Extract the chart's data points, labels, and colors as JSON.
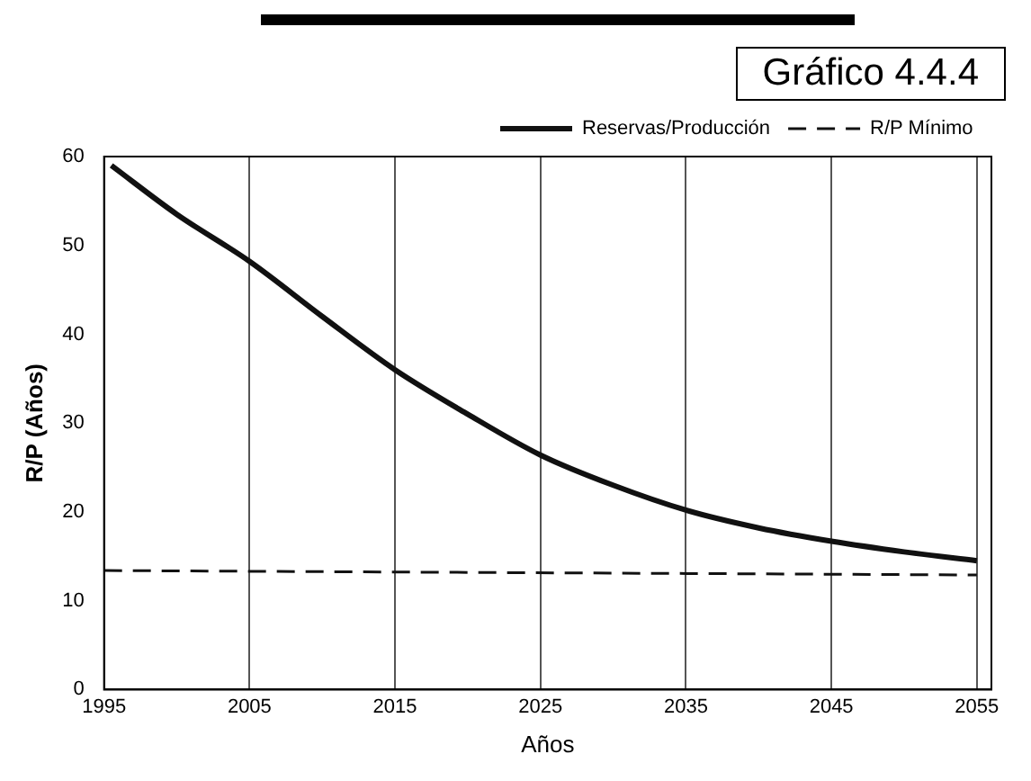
{
  "chart_data": {
    "type": "line",
    "title": "Gráfico 4.4.4",
    "xlabel": "Años",
    "ylabel": "R/P (Años)",
    "series": [
      {
        "name": "Reservas/Producción",
        "color": "#111111",
        "line_style": "solid",
        "x": [
          1995.5,
          2000,
          2005,
          2010,
          2015,
          2020,
          2025,
          2030,
          2035,
          2040,
          2045,
          2050,
          2055
        ],
        "values": [
          59,
          53.5,
          48.2,
          42,
          36,
          31,
          26.4,
          23,
          20.2,
          18.2,
          16.7,
          15.5,
          14.5
        ]
      },
      {
        "name": "R/P Mínimo",
        "color": "#111111",
        "line_style": "dashed",
        "x": [
          1995,
          2055
        ],
        "values": [
          13.4,
          12.9
        ]
      }
    ],
    "xlim": [
      1995,
      2056
    ],
    "xticks": [
      1995,
      2005,
      2015,
      2025,
      2035,
      2045,
      2055
    ],
    "ylim": [
      0,
      60
    ],
    "yticks": [
      0,
      10,
      20,
      30,
      40,
      50,
      60
    ],
    "grid": "x",
    "legend": "top right",
    "marker": "none"
  }
}
